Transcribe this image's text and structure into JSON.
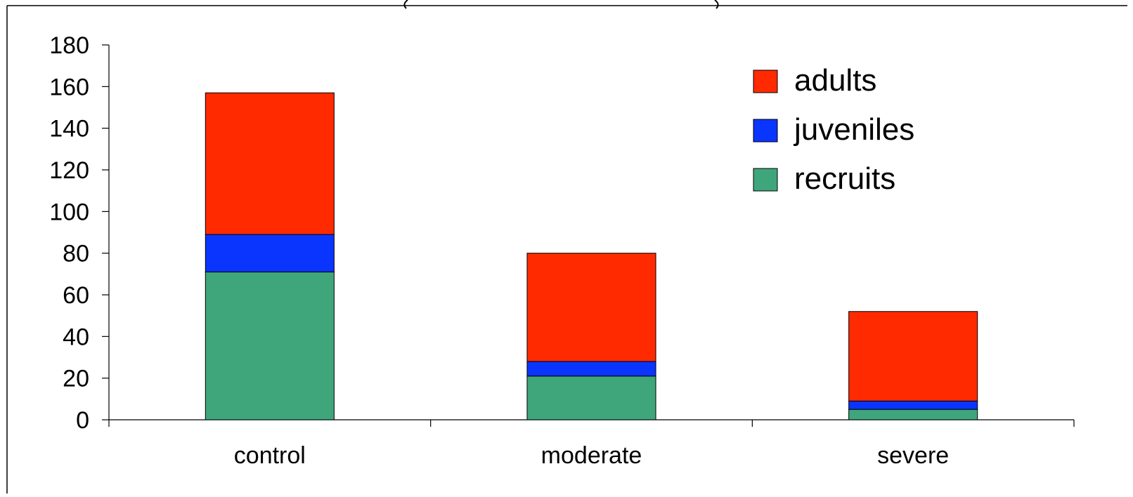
{
  "chart_data": {
    "type": "bar",
    "stacked": true,
    "title": "",
    "xlabel": "",
    "ylabel": "",
    "categories": [
      "control",
      "moderate",
      "severe"
    ],
    "series": [
      {
        "name": "recruits",
        "values": [
          71,
          21,
          5
        ],
        "color": "#3FA67B"
      },
      {
        "name": "juveniles",
        "values": [
          18,
          7,
          4
        ],
        "color": "#0A35FF"
      },
      {
        "name": "adults",
        "values": [
          68,
          52,
          43
        ],
        "color": "#FF2A00"
      }
    ],
    "ylim": [
      0,
      180
    ],
    "yticks": [
      0,
      20,
      40,
      60,
      80,
      100,
      120,
      140,
      160,
      180
    ],
    "legend": {
      "position": "top-right",
      "entries": [
        "adults",
        "juveniles",
        "recruits"
      ]
    },
    "grid": false
  }
}
